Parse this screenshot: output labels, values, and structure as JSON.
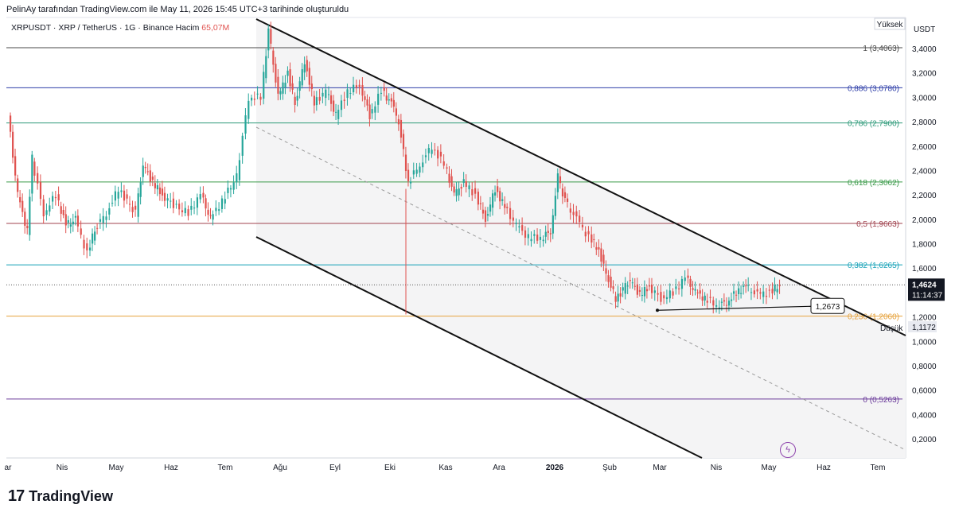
{
  "header": {
    "caption": "PelinAy tarafından TradingView.com ile May 11, 2026 15:45 UTC+3 tarihinde oluşturuldu",
    "symbol": "XRPUSDT · XRP / TetherUS · 1G · Binance",
    "volume_label": "Hacim",
    "volume_value": "65,07M"
  },
  "brand": {
    "logo": "17",
    "name": "TradingView"
  },
  "icons": {
    "bolt": "bolt-icon"
  },
  "chart_data": {
    "type": "candlestick",
    "currency": "USDT",
    "ylim": [
      0.05,
      3.8
    ],
    "y_ticks": [
      "3,4000",
      "3,2000",
      "3,0000",
      "2,8000",
      "2,6000",
      "2,4000",
      "2,2000",
      "2,0000",
      "1,8000",
      "1,6000",
      "1,4000",
      "1,2000",
      "1,0000",
      "0,8000",
      "0,6000",
      "0,4000",
      "0,2000"
    ],
    "x_ticks": [
      "ar",
      "Nis",
      "May",
      "Haz",
      "Tem",
      "Ağu",
      "Eyl",
      "Eki",
      "Kas",
      "Ara",
      "2026",
      "Şub",
      "Mar",
      "Nis",
      "May",
      "Haz",
      "Tem"
    ],
    "high_label": "Yüksek",
    "low_label": "Düşük",
    "low_value": "1,1172",
    "last_price": "1,4624",
    "countdown": "11:14:37",
    "annotation": "1,2673",
    "fib_levels": [
      {
        "label": "1 (3,4063)",
        "value": 3.4063,
        "color": "#4a4a4a"
      },
      {
        "label": "0,886 (3,0780)",
        "value": 3.078,
        "color": "#2f3fa8"
      },
      {
        "label": "0,786 (2,7900)",
        "value": 2.79,
        "color": "#2e9a79"
      },
      {
        "label": "0,618 (2,3062)",
        "value": 2.3062,
        "color": "#3a9a49"
      },
      {
        "label": "0,5 (1,9663)",
        "value": 1.9663,
        "color": "#a0434f"
      },
      {
        "label": "0,382 (1,6265)",
        "value": 1.6265,
        "color": "#17a2b8"
      },
      {
        "label": "0,236 (1,2060)",
        "value": 1.206,
        "color": "#e6a23c"
      },
      {
        "label": "0 (0,5263)",
        "value": 0.5263,
        "color": "#6a3a9a"
      }
    ],
    "price_path": [
      [
        0,
        2.85
      ],
      [
        0.4,
        2.2
      ],
      [
        0.8,
        1.9
      ],
      [
        1.0,
        2.5
      ],
      [
        1.5,
        2.05
      ],
      [
        2.0,
        2.2
      ],
      [
        2.4,
        1.95
      ],
      [
        2.8,
        2.0
      ],
      [
        3.3,
        1.72
      ],
      [
        3.6,
        1.92
      ],
      [
        4.1,
        2.05
      ],
      [
        4.6,
        2.25
      ],
      [
        5.3,
        2.05
      ],
      [
        5.6,
        2.45
      ],
      [
        6.0,
        2.3
      ],
      [
        6.4,
        2.2
      ],
      [
        7.0,
        2.1
      ],
      [
        7.5,
        2.05
      ],
      [
        8.0,
        2.2
      ],
      [
        8.4,
        2.0
      ],
      [
        8.9,
        2.15
      ],
      [
        9.5,
        2.35
      ],
      [
        10.0,
        3.0
      ],
      [
        10.5,
        3.0
      ],
      [
        10.8,
        3.55
      ],
      [
        11.2,
        3.0
      ],
      [
        11.6,
        3.2
      ],
      [
        11.9,
        2.95
      ],
      [
        12.3,
        3.3
      ],
      [
        12.7,
        2.95
      ],
      [
        13.2,
        3.05
      ],
      [
        13.6,
        2.85
      ],
      [
        14.1,
        3.05
      ],
      [
        14.6,
        3.1
      ],
      [
        15.0,
        2.85
      ],
      [
        15.5,
        3.05
      ],
      [
        15.9,
        2.95
      ],
      [
        16.2,
        2.8
      ],
      [
        16.6,
        2.3
      ],
      [
        17.1,
        2.45
      ],
      [
        17.6,
        2.6
      ],
      [
        18.1,
        2.45
      ],
      [
        18.5,
        2.2
      ],
      [
        18.9,
        2.3
      ],
      [
        19.4,
        2.2
      ],
      [
        19.8,
        2.0
      ],
      [
        20.2,
        2.25
      ],
      [
        20.6,
        2.1
      ],
      [
        21.1,
        1.95
      ],
      [
        21.6,
        1.85
      ],
      [
        22.1,
        1.85
      ],
      [
        22.5,
        1.9
      ],
      [
        22.8,
        2.35
      ],
      [
        23.1,
        2.15
      ],
      [
        23.6,
        2.0
      ],
      [
        24.1,
        1.85
      ],
      [
        24.5,
        1.75
      ],
      [
        24.8,
        1.55
      ],
      [
        25.2,
        1.35
      ],
      [
        25.5,
        1.42
      ],
      [
        25.8,
        1.5
      ],
      [
        26.2,
        1.38
      ],
      [
        26.6,
        1.45
      ],
      [
        27.1,
        1.35
      ],
      [
        27.6,
        1.4
      ],
      [
        28.1,
        1.52
      ],
      [
        28.5,
        1.4
      ],
      [
        28.9,
        1.35
      ],
      [
        29.4,
        1.3
      ],
      [
        29.8,
        1.32
      ],
      [
        30.2,
        1.4
      ],
      [
        30.6,
        1.45
      ],
      [
        31.1,
        1.38
      ],
      [
        31.6,
        1.4
      ],
      [
        32.0,
        1.46
      ]
    ]
  }
}
